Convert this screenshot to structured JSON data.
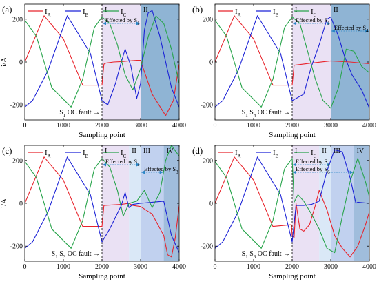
{
  "colors": {
    "IA": "#e8242c",
    "IB": "#1b22d6",
    "IC": "#27a44a",
    "regionI": "#e6dcf2",
    "regionII": "#d3e4f6",
    "regionIII": "#b6c9ec",
    "regionIV": "#8fb2d6",
    "regionII_b": "#7ba7cd",
    "arrow": "#2b86c6"
  },
  "chart_data": [
    {
      "panel": "(a)",
      "type": "line",
      "ylabel": "i/A",
      "xlabel": "Sampling point",
      "xlim": [
        0,
        4000
      ],
      "ylim": [
        -270,
        270
      ],
      "xticks": [
        "0",
        "1000",
        "2000",
        "3000",
        "4000"
      ],
      "yticks": [
        "200",
        "0",
        "-200"
      ],
      "legend": [
        "I_A",
        "I_B",
        "I_C"
      ],
      "fault_label": "S_1 OC fault →",
      "regions": [
        {
          "label": "I",
          "from": 2000,
          "to": 3000
        },
        {
          "label": "II",
          "from": 3000,
          "to": 4000
        }
      ],
      "annotations": [
        {
          "text": "Effected by S_1",
          "from": 2000,
          "to": 3000
        }
      ],
      "series": [
        {
          "name": "I_A",
          "x": [
            0,
            500,
            1000,
            1500,
            2000,
            2050,
            2100,
            2300,
            2500,
            2700,
            2900,
            3000,
            3050,
            3300,
            3650,
            3850,
            4000
          ],
          "y": [
            0,
            216,
            108,
            -108,
            -108,
            -10,
            -5,
            0,
            2,
            5,
            8,
            8,
            -20,
            -150,
            -250,
            -180,
            -10
          ]
        },
        {
          "name": "I_B",
          "x": [
            0,
            200,
            600,
            1100,
            1700,
            2000,
            2150,
            2350,
            2500,
            2600,
            2750,
            2900,
            3000,
            3100,
            3200,
            3300,
            3500,
            3800,
            4000
          ],
          "y": [
            -210,
            -180,
            -40,
            216,
            40,
            -180,
            -200,
            -100,
            0,
            60,
            -20,
            -170,
            -100,
            150,
            230,
            240,
            120,
            -120,
            -210
          ]
        },
        {
          "name": "I_C",
          "x": [
            0,
            300,
            700,
            1200,
            1500,
            1800,
            2000,
            2200,
            2400,
            2600,
            2800,
            3000,
            3200,
            3400,
            3600,
            3800,
            4000
          ],
          "y": [
            195,
            120,
            -120,
            -210,
            -80,
            160,
            210,
            180,
            80,
            -60,
            -130,
            -30,
            120,
            215,
            180,
            60,
            -100
          ]
        }
      ]
    },
    {
      "panel": "(b)",
      "type": "line",
      "ylabel": "",
      "xlabel": "Sampling point",
      "xlim": [
        0,
        4000
      ],
      "ylim": [
        -270,
        270
      ],
      "xticks": [
        "0",
        "1000",
        "2000",
        "3000",
        "4000"
      ],
      "yticks": [
        "200",
        "0",
        "-200"
      ],
      "legend": [
        "I_A",
        "I_B",
        "I_C"
      ],
      "fault_label": "S_1 S_4 OC fault →",
      "regions": [
        {
          "label": "I",
          "from": 2000,
          "to": 3000
        },
        {
          "label": "II",
          "from": 3000,
          "to": 4000
        }
      ],
      "annotations": [
        {
          "text": "Effected by S_1",
          "from": 2000,
          "to": 3000
        },
        {
          "text": "Effected by S_4",
          "from": 3000,
          "to": 4000
        }
      ],
      "series": [
        {
          "name": "I_A",
          "x": [
            0,
            500,
            1000,
            1500,
            2000,
            2050,
            2500,
            3000,
            3500,
            4000
          ],
          "y": [
            0,
            216,
            108,
            -108,
            -108,
            -15,
            -5,
            5,
            0,
            -8
          ]
        },
        {
          "name": "I_B",
          "x": [
            0,
            200,
            600,
            1100,
            1700,
            2000,
            2300,
            2500,
            2700,
            2900,
            3000,
            3200,
            3350,
            3550,
            3800,
            4000
          ],
          "y": [
            -210,
            -180,
            -40,
            216,
            40,
            -180,
            -150,
            -20,
            80,
            200,
            210,
            120,
            30,
            -60,
            -130,
            -215
          ]
        },
        {
          "name": "I_C",
          "x": [
            0,
            300,
            700,
            1200,
            1500,
            1800,
            2000,
            2200,
            2400,
            2600,
            2800,
            3000,
            3200,
            3400,
            3600,
            3800,
            4000
          ],
          "y": [
            195,
            120,
            -120,
            -210,
            -80,
            160,
            210,
            180,
            50,
            -80,
            -180,
            -215,
            -120,
            60,
            50,
            -20,
            -50
          ]
        }
      ]
    },
    {
      "panel": "(c)",
      "type": "line",
      "ylabel": "i/A",
      "xlabel": "Sampling point",
      "xlim": [
        0,
        4000
      ],
      "ylim": [
        -270,
        270
      ],
      "xticks": [
        "0",
        "1000",
        "2000",
        "3000",
        "4000"
      ],
      "yticks": [
        "200",
        "0",
        "-200"
      ],
      "legend": [
        "I_A",
        "I_B",
        "I_C"
      ],
      "fault_label": "S_1 S_3 OC fault →",
      "regions": [
        {
          "label": "I",
          "from": 2000,
          "to": 2700
        },
        {
          "label": "II",
          "from": 2700,
          "to": 3000
        },
        {
          "label": "III",
          "from": 3000,
          "to": 3600
        },
        {
          "label": "IV",
          "from": 3600,
          "to": 4000
        }
      ],
      "annotations": [
        {
          "text": "Effected by S_1",
          "from": 2000,
          "to": 3000
        },
        {
          "text": "Effected by S_3",
          "from": 3000,
          "to": 3600
        }
      ],
      "series": [
        {
          "name": "I_A",
          "x": [
            0,
            500,
            1000,
            1500,
            2000,
            2050,
            2500,
            2700,
            2800,
            3000,
            3300,
            3600,
            3700,
            3800,
            3900,
            4000
          ],
          "y": [
            0,
            216,
            108,
            -108,
            -108,
            -10,
            -5,
            0,
            -10,
            -15,
            -50,
            -150,
            -240,
            -250,
            -160,
            -10
          ]
        },
        {
          "name": "I_B",
          "x": [
            0,
            200,
            600,
            1100,
            1700,
            2000,
            2200,
            2500,
            2600,
            2700,
            2800,
            3000,
            3300,
            3600,
            3800,
            4000
          ],
          "y": [
            -210,
            -180,
            -40,
            216,
            40,
            -180,
            -120,
            -10,
            50,
            -20,
            -5,
            0,
            5,
            10,
            -150,
            -230
          ]
        },
        {
          "name": "I_C",
          "x": [
            0,
            300,
            700,
            1200,
            1500,
            1800,
            2000,
            2200,
            2400,
            2550,
            2700,
            2900,
            3100,
            3300,
            3500,
            3650,
            3800,
            4000
          ],
          "y": [
            195,
            120,
            -120,
            -210,
            -80,
            160,
            210,
            170,
            60,
            -60,
            0,
            10,
            60,
            -20,
            50,
            200,
            270,
            220
          ]
        }
      ]
    },
    {
      "panel": "(d)",
      "type": "line",
      "ylabel": "",
      "xlabel": "Sampling point",
      "xlim": [
        0,
        4000
      ],
      "ylim": [
        -270,
        270
      ],
      "xticks": [
        "0",
        "1000",
        "2000",
        "3000",
        "4000"
      ],
      "yticks": [
        "200",
        "0",
        "-200"
      ],
      "legend": [
        "I_A",
        "I_B",
        "I_C"
      ],
      "fault_label": "S_1 S_6 OC fault →",
      "regions": [
        {
          "label": "I",
          "from": 2000,
          "to": 2700
        },
        {
          "label": "II",
          "from": 2700,
          "to": 3000
        },
        {
          "label": "III",
          "from": 3000,
          "to": 3600
        },
        {
          "label": "IV",
          "from": 3600,
          "to": 4000
        }
      ],
      "annotations": [
        {
          "text": "Effected by S_1",
          "from": 2000,
          "to": 3000
        },
        {
          "text": "Effected by S_6",
          "from": 2000,
          "to": 3600
        }
      ],
      "series": [
        {
          "name": "I_A",
          "x": [
            0,
            500,
            1000,
            1500,
            1980,
            2000,
            2050,
            2100,
            2200,
            2300,
            2450,
            2600,
            2700,
            2900,
            3100,
            3300,
            3500,
            3700,
            3900,
            4000
          ],
          "y": [
            0,
            216,
            108,
            -108,
            -100,
            -150,
            -160,
            0,
            -120,
            -130,
            -100,
            -10,
            60,
            -30,
            -150,
            -210,
            -250,
            -200,
            -100,
            -40
          ]
        },
        {
          "name": "I_B",
          "x": [
            0,
            200,
            600,
            1100,
            1700,
            2000,
            2100,
            2300,
            2500,
            2700,
            2900,
            3100,
            3300,
            3500,
            3650,
            3700,
            4000
          ],
          "y": [
            -210,
            -180,
            -40,
            216,
            40,
            -180,
            -10,
            -10,
            -5,
            10,
            150,
            250,
            240,
            120,
            0,
            5,
            0
          ]
        },
        {
          "name": "I_C",
          "x": [
            0,
            300,
            700,
            1200,
            1500,
            1800,
            2000,
            2050,
            2150,
            2300,
            2500,
            2700,
            2900,
            3100,
            3300,
            3500,
            3700,
            3900,
            4000
          ],
          "y": [
            195,
            120,
            -120,
            -210,
            -80,
            160,
            210,
            5,
            40,
            10,
            -50,
            -120,
            -210,
            -230,
            -60,
            100,
            210,
            100,
            30
          ]
        }
      ]
    }
  ]
}
